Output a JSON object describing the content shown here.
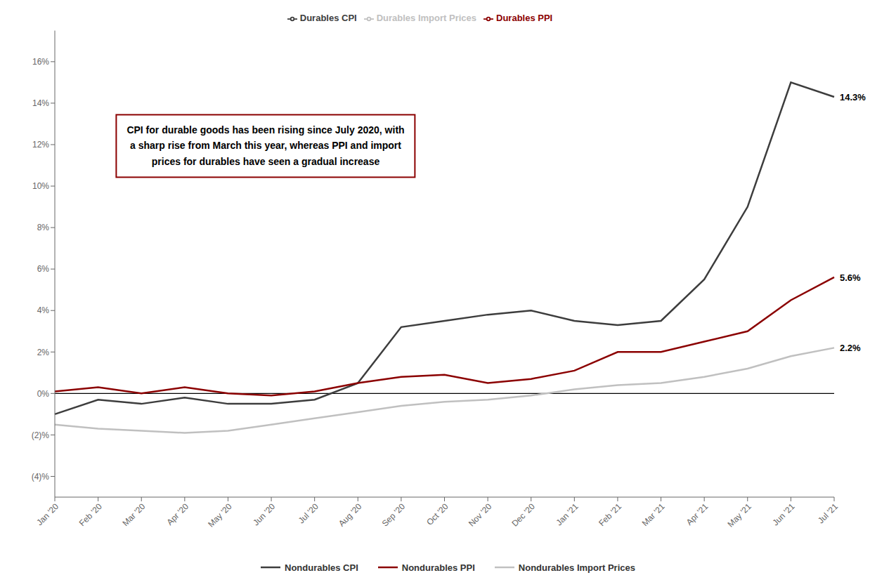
{
  "chart_data": {
    "type": "line",
    "categories": [
      "Jan '20",
      "Feb '20",
      "Mar '20",
      "Apr '20",
      "May '20",
      "Jun '20",
      "Jul '20",
      "Aug '20",
      "Sep '20",
      "Oct '20",
      "Nov '20",
      "Dec '20",
      "Jan '21",
      "Feb '21",
      "Mar '21",
      "Apr '21",
      "May '21",
      "Jun '21",
      "Jul '21"
    ],
    "series": [
      {
        "name": "Durables CPI",
        "color": "#3d3d3d",
        "values": [
          -1.0,
          -0.3,
          -0.5,
          -0.2,
          -0.5,
          -0.5,
          -0.3,
          0.5,
          3.2,
          3.5,
          3.8,
          4.0,
          3.5,
          3.3,
          3.5,
          5.5,
          9.0,
          15.0,
          14.3
        ]
      },
      {
        "name": "Durables PPI",
        "color": "#8b0000",
        "values": [
          0.1,
          0.3,
          0.0,
          0.3,
          0.0,
          -0.1,
          0.1,
          0.5,
          0.8,
          0.9,
          0.5,
          0.7,
          1.1,
          2.0,
          2.0,
          2.5,
          3.0,
          4.5,
          5.6
        ]
      },
      {
        "name": "Durables Import Prices",
        "color": "#c0c0c0",
        "values": [
          -1.5,
          -1.7,
          -1.8,
          -1.9,
          -1.8,
          -1.5,
          -1.2,
          -0.9,
          -0.6,
          -0.4,
          -0.3,
          -0.1,
          0.2,
          0.4,
          0.5,
          0.8,
          1.2,
          1.8,
          2.2
        ]
      }
    ],
    "ylim": [
      -5.0,
      17.5
    ],
    "yticks": [
      {
        "value": -4,
        "label": "(4)%"
      },
      {
        "value": -2,
        "label": "(2)%"
      },
      {
        "value": 0,
        "label": "0%"
      },
      {
        "value": 2,
        "label": "2%"
      },
      {
        "value": 4,
        "label": "4%"
      },
      {
        "value": 6,
        "label": "6%"
      },
      {
        "value": 8,
        "label": "8%"
      },
      {
        "value": 10,
        "label": "10%"
      },
      {
        "value": 12,
        "label": "12%"
      },
      {
        "value": 14,
        "label": "14%"
      },
      {
        "value": 16,
        "label": "16%"
      }
    ],
    "grid": false,
    "legend": "top",
    "annotations": [
      {
        "text": "14.3%",
        "x": "Jul '21",
        "y": 14.3
      },
      {
        "text": "5.6%",
        "x": "Jul '21",
        "y": 5.6
      },
      {
        "text": "2.2%",
        "x": "Jul '21",
        "y": 2.2
      }
    ],
    "text_box": {
      "text": "CPI for durable goods has been rising since July 2020, with\na sharp rise from March this year, whereas PPI and import\nprices for durables have seen a gradual increase",
      "color": "#8b0000"
    },
    "bottom_legend": [
      {
        "name": "Nondurables CPI",
        "color": "#3d3d3d"
      },
      {
        "name": "Nondurables PPI",
        "color": "#8b0000"
      },
      {
        "name": "Nondurables Import Prices",
        "color": "#c0c0c0"
      }
    ]
  }
}
